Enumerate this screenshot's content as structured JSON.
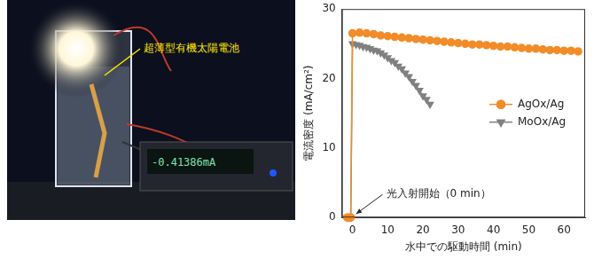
{
  "photo": {
    "label": "超薄型有機太陽電池",
    "meter_reading": "-0.41386mA"
  },
  "chart_data": {
    "type": "line",
    "x_label": "水中での駆動時間 (min)",
    "y_label": "電流密度 (mA/cm²)",
    "xlim": [
      -3,
      66
    ],
    "xticks": [
      0,
      10,
      20,
      30,
      40,
      50,
      60
    ],
    "ylim": [
      0,
      30
    ],
    "yticks": [
      0,
      10,
      20,
      30
    ],
    "grid": false,
    "legend": "right",
    "series": [
      {
        "name": "AgOx/Ag",
        "color": "#f28c28",
        "marker": "circle",
        "line_style": "solid",
        "x": [
          -1.5,
          -1,
          -0.5,
          0,
          2,
          4,
          6,
          8,
          10,
          12,
          14,
          16,
          18,
          20,
          22,
          24,
          26,
          28,
          30,
          32,
          34,
          36,
          38,
          40,
          42,
          44,
          46,
          48,
          50,
          52,
          54,
          56,
          58,
          60,
          62,
          64
        ],
        "values": [
          0,
          0,
          0,
          26.5,
          26.6,
          26.5,
          26.4,
          26.2,
          26.1,
          26.0,
          25.9,
          25.8,
          25.7,
          25.6,
          25.5,
          25.4,
          25.3,
          25.2,
          25.1,
          25.0,
          24.9,
          24.9,
          24.8,
          24.7,
          24.6,
          24.6,
          24.5,
          24.4,
          24.3,
          24.3,
          24.2,
          24.1,
          24.1,
          24.0,
          24.0,
          23.9
        ]
      },
      {
        "name": "MoOx/Ag",
        "color": "#808080",
        "marker": "triangle-down",
        "line_style": "solid",
        "x": [
          -1.5,
          -1,
          -0.5,
          0,
          1,
          2,
          3,
          4,
          5,
          6,
          7,
          8,
          9,
          10,
          11,
          12,
          13,
          14,
          15,
          16,
          17,
          18,
          19,
          20,
          21,
          22
        ],
        "values": [
          0,
          0,
          0,
          25.0,
          24.9,
          24.8,
          24.6,
          24.5,
          24.3,
          24.1,
          24.0,
          23.7,
          23.4,
          23.0,
          22.6,
          22.3,
          21.8,
          21.4,
          20.8,
          20.3,
          19.6,
          19.0,
          18.3,
          17.5,
          17.0,
          16.3
        ]
      }
    ],
    "annotations": [
      {
        "text": "光入射開始（0 min）",
        "x": 0,
        "y": 0
      }
    ]
  }
}
